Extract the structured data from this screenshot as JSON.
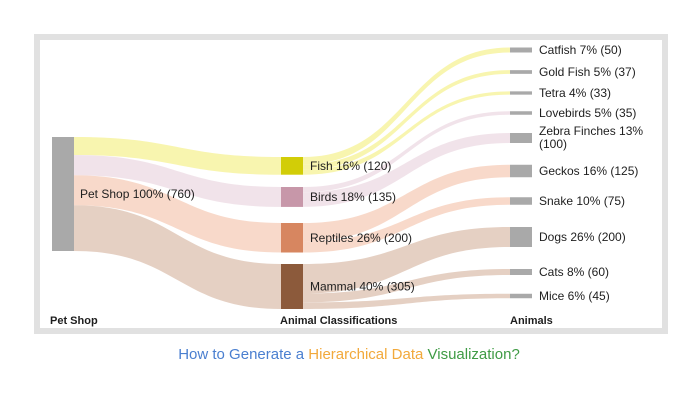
{
  "caption": {
    "part1": "How to Generate a",
    "part2": "Hierarchical Data",
    "part3": "Visualization?"
  },
  "columns": {
    "left": "Pet Shop",
    "middle": "Animal Classifications",
    "right": "Animals"
  },
  "colors": {
    "root": "#a9a9a9",
    "leaf": "#a9a9a9",
    "fish": "#d2cd07",
    "birds": "#c797a9",
    "reptiles": "#d78660",
    "mammal": "#8c5a3b",
    "fish_link": "#f7f4a6",
    "birds_link": "#f0e0e8",
    "reptiles_link": "#f7d5c4",
    "mammal_link": "#e2cbbc"
  },
  "nodes": {
    "root": {
      "label": "Pet Shop 100% (760)",
      "value": 760
    },
    "categories": [
      {
        "key": "fish",
        "label": "Fish 16% (120)",
        "value": 120
      },
      {
        "key": "birds",
        "label": "Birds 18% (135)",
        "value": 135
      },
      {
        "key": "reptiles",
        "label": "Reptiles 26% (200)",
        "value": 200
      },
      {
        "key": "mammal",
        "label": "Mammal 40% (305)",
        "value": 305
      }
    ],
    "animals": [
      {
        "label": "Catfish 7% (50)",
        "value": 50,
        "parent": "fish"
      },
      {
        "label": "Gold Fish 5% (37)",
        "value": 37,
        "parent": "fish"
      },
      {
        "label": "Tetra 4% (33)",
        "value": 33,
        "parent": "fish"
      },
      {
        "label": "Lovebirds 5% (35)",
        "value": 35,
        "parent": "birds"
      },
      {
        "label_lines": [
          "Zebra Finches 13%",
          "(100)"
        ],
        "value": 100,
        "parent": "birds"
      },
      {
        "label": "Geckos 16% (125)",
        "value": 125,
        "parent": "reptiles"
      },
      {
        "label": "Snake 10% (75)",
        "value": 75,
        "parent": "reptiles"
      },
      {
        "label": "Dogs 26% (200)",
        "value": 200,
        "parent": "mammal"
      },
      {
        "label": "Cats 8% (60)",
        "value": 60,
        "parent": "mammal"
      },
      {
        "label": "Mice 6% (45)",
        "value": 45,
        "parent": "mammal"
      }
    ]
  }
}
